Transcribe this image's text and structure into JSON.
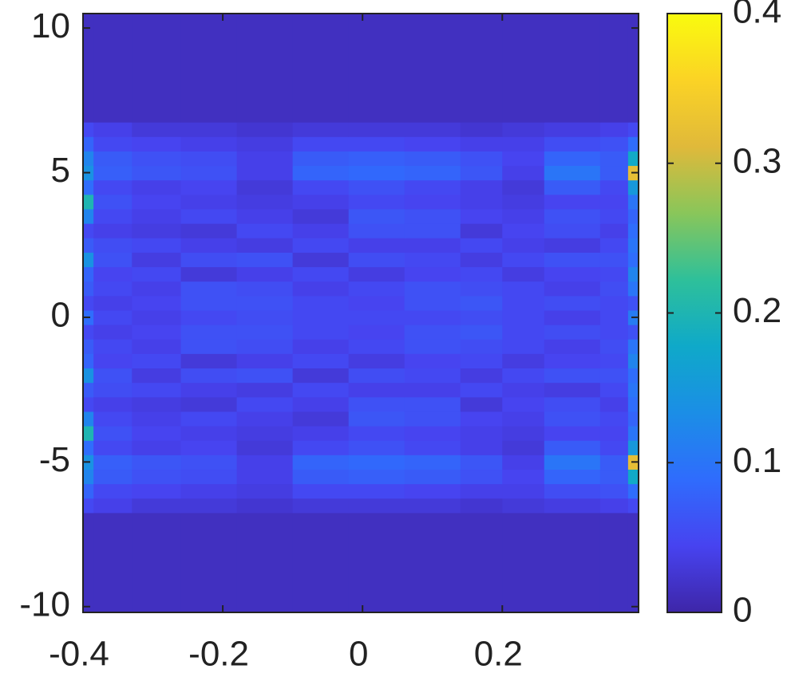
{
  "chart_data": {
    "type": "heatmap",
    "xedges": [
      -0.4,
      -0.385,
      -0.33,
      -0.26,
      -0.18,
      -0.1,
      -0.02,
      0.06,
      0.14,
      0.2,
      0.26,
      0.34,
      0.38,
      0.395
    ],
    "yedges": [
      -10.2,
      -6.75,
      -6.25,
      -5.75,
      -5.25,
      -4.75,
      -4.25,
      -3.75,
      -3.25,
      -2.75,
      -2.25,
      -1.75,
      -1.25,
      -0.75,
      -0.25,
      0.25,
      0.75,
      1.25,
      1.75,
      2.25,
      2.75,
      3.25,
      3.75,
      4.25,
      4.75,
      5.25,
      5.75,
      6.25,
      6.75,
      10.5
    ],
    "z": [
      [
        0.015,
        0.015,
        0.015,
        0.015,
        0.015,
        0.015,
        0.015,
        0.015,
        0.015,
        0.015,
        0.015,
        0.015,
        0.015
      ],
      [
        0.05,
        0.04,
        0.03,
        0.03,
        0.025,
        0.03,
        0.03,
        0.03,
        0.025,
        0.03,
        0.035,
        0.04,
        0.05
      ],
      [
        0.08,
        0.05,
        0.045,
        0.04,
        0.035,
        0.05,
        0.05,
        0.045,
        0.04,
        0.04,
        0.055,
        0.06,
        0.09
      ],
      [
        0.12,
        0.07,
        0.06,
        0.055,
        0.04,
        0.07,
        0.075,
        0.07,
        0.06,
        0.045,
        0.08,
        0.07,
        0.18
      ],
      [
        0.14,
        0.075,
        0.065,
        0.06,
        0.04,
        0.08,
        0.085,
        0.08,
        0.065,
        0.04,
        0.1,
        0.07,
        0.32
      ],
      [
        0.09,
        0.05,
        0.04,
        0.045,
        0.03,
        0.05,
        0.06,
        0.05,
        0.04,
        0.03,
        0.07,
        0.05,
        0.15
      ],
      [
        0.2,
        0.06,
        0.045,
        0.04,
        0.035,
        0.04,
        0.05,
        0.045,
        0.04,
        0.035,
        0.045,
        0.045,
        0.1
      ],
      [
        0.12,
        0.05,
        0.04,
        0.05,
        0.04,
        0.03,
        0.065,
        0.06,
        0.045,
        0.04,
        0.06,
        0.05,
        0.08
      ],
      [
        0.05,
        0.04,
        0.035,
        0.03,
        0.05,
        0.04,
        0.06,
        0.06,
        0.03,
        0.045,
        0.055,
        0.04,
        0.09
      ],
      [
        0.07,
        0.055,
        0.05,
        0.04,
        0.035,
        0.05,
        0.04,
        0.04,
        0.05,
        0.04,
        0.035,
        0.05,
        0.1
      ],
      [
        0.14,
        0.06,
        0.035,
        0.055,
        0.06,
        0.03,
        0.055,
        0.05,
        0.035,
        0.05,
        0.06,
        0.06,
        0.09
      ],
      [
        0.08,
        0.045,
        0.05,
        0.03,
        0.04,
        0.05,
        0.035,
        0.045,
        0.05,
        0.035,
        0.045,
        0.05,
        0.12
      ],
      [
        0.07,
        0.05,
        0.04,
        0.06,
        0.055,
        0.04,
        0.05,
        0.06,
        0.055,
        0.05,
        0.04,
        0.055,
        0.1
      ],
      [
        0.05,
        0.04,
        0.045,
        0.06,
        0.06,
        0.05,
        0.045,
        0.06,
        0.065,
        0.05,
        0.055,
        0.05,
        0.06
      ],
      [
        0.09,
        0.05,
        0.04,
        0.05,
        0.055,
        0.05,
        0.05,
        0.05,
        0.055,
        0.05,
        0.04,
        0.05,
        0.11
      ],
      [
        0.05,
        0.04,
        0.045,
        0.06,
        0.06,
        0.05,
        0.045,
        0.06,
        0.065,
        0.05,
        0.055,
        0.05,
        0.06
      ],
      [
        0.07,
        0.05,
        0.04,
        0.06,
        0.055,
        0.04,
        0.05,
        0.06,
        0.055,
        0.05,
        0.04,
        0.055,
        0.1
      ],
      [
        0.08,
        0.045,
        0.05,
        0.03,
        0.04,
        0.05,
        0.035,
        0.045,
        0.05,
        0.035,
        0.045,
        0.05,
        0.12
      ],
      [
        0.14,
        0.06,
        0.035,
        0.055,
        0.06,
        0.03,
        0.055,
        0.05,
        0.035,
        0.05,
        0.06,
        0.06,
        0.09
      ],
      [
        0.07,
        0.055,
        0.05,
        0.04,
        0.035,
        0.05,
        0.04,
        0.04,
        0.05,
        0.04,
        0.035,
        0.05,
        0.1
      ],
      [
        0.05,
        0.04,
        0.035,
        0.03,
        0.05,
        0.04,
        0.06,
        0.06,
        0.03,
        0.045,
        0.055,
        0.04,
        0.09
      ],
      [
        0.12,
        0.05,
        0.04,
        0.05,
        0.04,
        0.03,
        0.065,
        0.06,
        0.045,
        0.04,
        0.06,
        0.05,
        0.08
      ],
      [
        0.2,
        0.06,
        0.045,
        0.04,
        0.035,
        0.04,
        0.05,
        0.045,
        0.04,
        0.035,
        0.045,
        0.045,
        0.1
      ],
      [
        0.09,
        0.05,
        0.04,
        0.045,
        0.03,
        0.05,
        0.06,
        0.05,
        0.04,
        0.03,
        0.07,
        0.05,
        0.15
      ],
      [
        0.14,
        0.075,
        0.065,
        0.06,
        0.04,
        0.08,
        0.085,
        0.08,
        0.065,
        0.04,
        0.1,
        0.07,
        0.32
      ],
      [
        0.12,
        0.07,
        0.06,
        0.055,
        0.04,
        0.07,
        0.075,
        0.07,
        0.06,
        0.045,
        0.08,
        0.07,
        0.18
      ],
      [
        0.08,
        0.05,
        0.045,
        0.04,
        0.035,
        0.05,
        0.05,
        0.045,
        0.04,
        0.04,
        0.055,
        0.06,
        0.09
      ],
      [
        0.05,
        0.04,
        0.03,
        0.03,
        0.025,
        0.03,
        0.03,
        0.03,
        0.025,
        0.03,
        0.035,
        0.04,
        0.05
      ],
      [
        0.015,
        0.015,
        0.015,
        0.015,
        0.015,
        0.015,
        0.015,
        0.015,
        0.015,
        0.015,
        0.015,
        0.015,
        0.015
      ]
    ],
    "xlim": [
      -0.4,
      0.395
    ],
    "xticks": [
      -0.4,
      -0.2,
      0,
      0.2
    ],
    "ylim": [
      -10.2,
      10.5
    ],
    "yticks": [
      -10,
      -5,
      0,
      5,
      10
    ],
    "clim": [
      0,
      0.4
    ],
    "cticks": [
      0,
      0.1,
      0.2,
      0.3,
      0.4
    ],
    "colormap": [
      "#3e26a8",
      "#4743f0",
      "#2f6cfd",
      "#1b8ee6",
      "#0fa9c9",
      "#2ec09a",
      "#89c65a",
      "#e0b93a",
      "#fbd325",
      "#f9fb0e"
    ]
  }
}
